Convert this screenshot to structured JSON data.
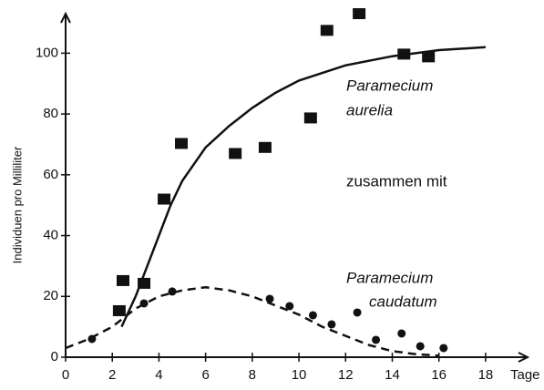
{
  "chart_data": {
    "type": "scatter",
    "y_label": "Individuen pro Milliliter",
    "x_label": "Tage",
    "annotations": [
      "Paramecium",
      "aurelia",
      "zusammen mit",
      "Paramecium",
      "caudatum"
    ],
    "xlim": [
      0,
      19.8
    ],
    "ylim": [
      0,
      113
    ],
    "xticks": [
      0,
      2,
      4,
      6,
      8,
      10,
      12,
      14,
      16,
      18
    ],
    "yticks": [
      0,
      20,
      40,
      60,
      80,
      100
    ],
    "series": [
      {
        "kind": "line",
        "dashed": false,
        "color": "#111",
        "x": [
          2.4,
          3,
          3.5,
          4,
          4.5,
          5,
          6,
          7,
          8,
          9,
          10,
          12,
          14,
          16,
          18
        ],
        "values": [
          10,
          20,
          30,
          40,
          50,
          58,
          69,
          76,
          82,
          87,
          91,
          96,
          99,
          101,
          102
        ]
      },
      {
        "kind": "line",
        "dashed": true,
        "color": "#111",
        "x": [
          0,
          1,
          2,
          3,
          4,
          5,
          6,
          7,
          8,
          9,
          10,
          11,
          12,
          13,
          14,
          15,
          16
        ],
        "values": [
          3,
          6,
          10,
          16,
          20,
          22,
          23,
          22,
          20,
          17,
          14,
          10,
          7,
          4,
          2,
          1,
          0.5
        ]
      },
      {
        "kind": "points",
        "marker": "square",
        "color": "#111",
        "x": [
          2.3,
          2.46,
          3.36,
          4.22,
          4.96,
          7.27,
          8.55,
          10.5,
          11.2,
          12.58,
          14.5,
          15.55
        ],
        "values": [
          15.3,
          25.2,
          24.3,
          52,
          70.3,
          67,
          69,
          78.7,
          107.5,
          113,
          99.7,
          98.8
        ]
      },
      {
        "kind": "points",
        "marker": "circle",
        "color": "#111",
        "x": [
          1.13,
          3.36,
          4.57,
          8.75,
          9.6,
          10.6,
          11.4,
          12.5,
          13.3,
          14.4,
          15.2,
          16.2
        ],
        "values": [
          6,
          17.7,
          21.6,
          19.2,
          16.8,
          13.8,
          10.8,
          14.7,
          5.7,
          7.8,
          3.6,
          3
        ]
      }
    ]
  }
}
